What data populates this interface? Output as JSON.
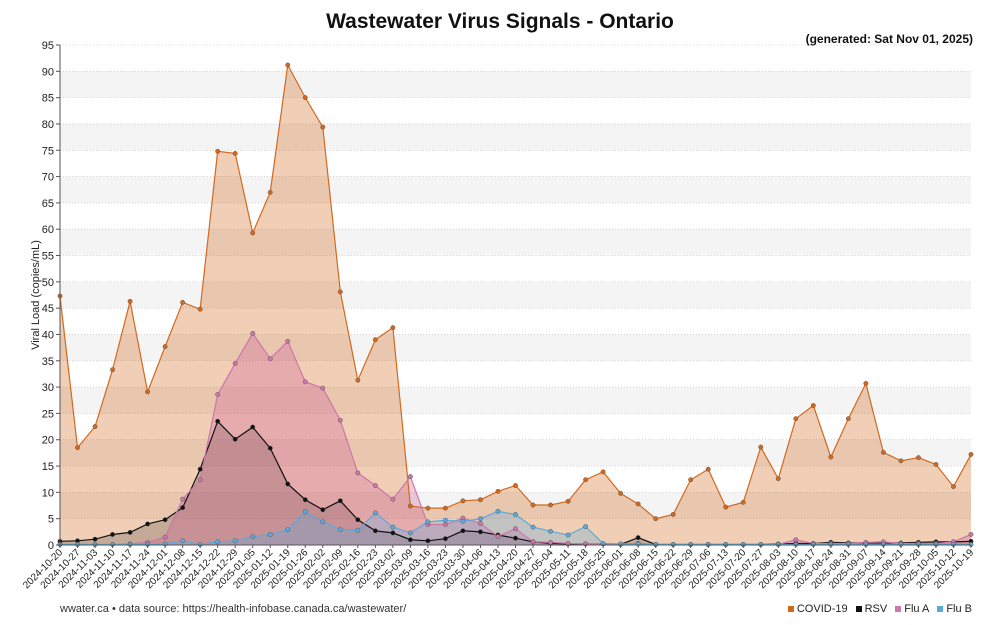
{
  "title": "Wastewater Virus Signals - Ontario",
  "generated": "(generated: Sat Nov 01, 2025)",
  "source": "wwater.ca • data source: https://health-infobase.canada.ca/wastewater/",
  "chart_data": {
    "type": "area",
    "ylabel": "Viral Load (copies/mL)",
    "ylim": [
      0,
      95
    ],
    "yticks": [
      0,
      5,
      10,
      15,
      20,
      25,
      30,
      35,
      40,
      45,
      50,
      55,
      60,
      65,
      70,
      75,
      80,
      85,
      90,
      95
    ],
    "x": [
      "2024-10-20",
      "2024-10-27",
      "2024-11-03",
      "2024-11-10",
      "2024-11-17",
      "2024-11-24",
      "2024-12-01",
      "2024-12-08",
      "2024-12-15",
      "2024-12-22",
      "2024-12-29",
      "2025-01-05",
      "2025-01-12",
      "2025-01-19",
      "2025-01-26",
      "2025-02-02",
      "2025-02-09",
      "2025-02-16",
      "2025-02-23",
      "2025-03-02",
      "2025-03-09",
      "2025-03-16",
      "2025-03-23",
      "2025-03-30",
      "2025-04-06",
      "2025-04-13",
      "2025-04-20",
      "2025-04-27",
      "2025-05-04",
      "2025-05-11",
      "2025-05-18",
      "2025-05-25",
      "2025-06-01",
      "2025-06-08",
      "2025-06-15",
      "2025-06-22",
      "2025-06-29",
      "2025-07-06",
      "2025-07-13",
      "2025-07-20",
      "2025-07-27",
      "2025-08-03",
      "2025-08-10",
      "2025-08-17",
      "2025-08-24",
      "2025-08-31",
      "2025-09-07",
      "2025-09-14",
      "2025-09-21",
      "2025-09-28",
      "2025-10-05",
      "2025-10-12",
      "2025-10-19"
    ],
    "series": [
      {
        "name": "COVID-19",
        "color": "#d2691e",
        "values": [
          47.3,
          18.5,
          22.5,
          33.3,
          46.3,
          29.1,
          37.7,
          46.1,
          44.8,
          74.8,
          74.4,
          59.3,
          67.0,
          91.2,
          85.0,
          79.4,
          48.1,
          31.3,
          39.0,
          41.3,
          7.4,
          7.0,
          7.0,
          8.4,
          8.6,
          10.2,
          11.3,
          7.6,
          7.6,
          8.3,
          12.4,
          13.9,
          9.8,
          7.8,
          5.0,
          5.8,
          12.4,
          14.4,
          7.2,
          8.1,
          18.6,
          12.6,
          24.0,
          26.5,
          16.7,
          24.0,
          30.7,
          17.6,
          16.0,
          16.6,
          15.3,
          11.1,
          17.2
        ]
      },
      {
        "name": "RSV",
        "color": "#111111",
        "values": [
          0.7,
          0.8,
          1.1,
          2.0,
          2.4,
          4.0,
          4.8,
          7.1,
          14.4,
          23.5,
          20.1,
          22.4,
          18.4,
          11.6,
          8.6,
          6.7,
          8.4,
          4.8,
          2.7,
          2.3,
          1.0,
          0.8,
          1.2,
          2.7,
          2.5,
          1.9,
          1.3,
          0.6,
          0.3,
          0.2,
          0.2,
          0.2,
          0.1,
          1.4,
          0.1,
          0.1,
          0.1,
          0.1,
          0.1,
          0.1,
          0.1,
          0.2,
          0.3,
          0.3,
          0.5,
          0.4,
          0.4,
          0.4,
          0.4,
          0.5,
          0.6,
          0.6,
          0.7
        ]
      },
      {
        "name": "Flu A",
        "color": "#cc77aa",
        "values": [
          0.1,
          0.1,
          0.1,
          0.1,
          0.2,
          0.5,
          1.5,
          8.7,
          12.4,
          28.6,
          34.5,
          40.2,
          35.4,
          38.7,
          31.0,
          29.8,
          23.7,
          13.7,
          11.3,
          8.7,
          13.0,
          3.9,
          3.9,
          5.1,
          4.1,
          1.6,
          3.1,
          0.6,
          0.5,
          0.3,
          0.2,
          0.2,
          0.2,
          0.3,
          0.1,
          0.1,
          0.1,
          0.1,
          0.1,
          0.1,
          0.1,
          0.1,
          1.0,
          0.3,
          0.3,
          0.3,
          0.5,
          0.6,
          0.3,
          0.3,
          0.3,
          0.6,
          2.0
        ]
      },
      {
        "name": "Flu B",
        "color": "#5aaadd",
        "values": [
          0.1,
          0.1,
          0.1,
          0.1,
          0.1,
          0.1,
          0.2,
          0.8,
          0.1,
          0.6,
          0.8,
          1.6,
          2.0,
          2.9,
          6.3,
          4.4,
          2.9,
          2.8,
          6.1,
          3.4,
          2.3,
          4.4,
          4.7,
          4.5,
          5.0,
          6.4,
          5.8,
          3.4,
          2.6,
          1.9,
          3.5,
          0.3,
          0.2,
          0.2,
          0.1,
          0.1,
          0.1,
          0.1,
          0.1,
          0.1,
          0.1,
          0.1,
          0.1,
          0.1,
          0.1,
          0.1,
          0.1,
          0.1,
          0.1,
          0.1,
          0.1,
          0.1,
          0.1
        ]
      }
    ]
  }
}
